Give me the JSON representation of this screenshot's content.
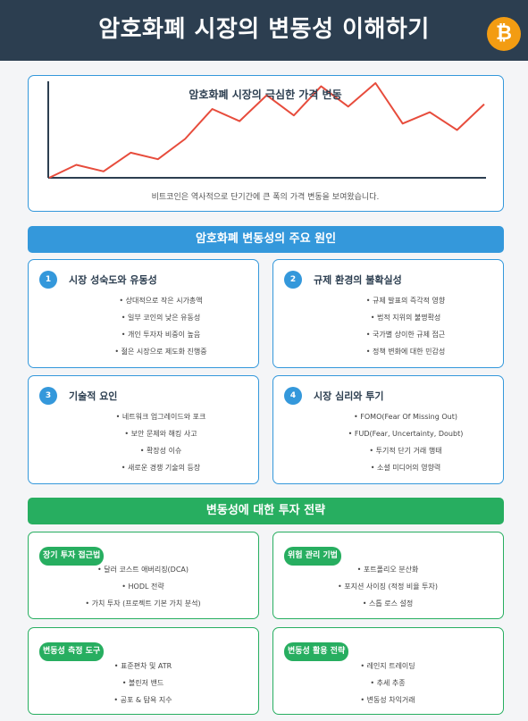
{
  "header": {
    "title": "암호화폐 시장의 변동성 이해하기",
    "icon": "bitcoin-icon",
    "icon_glyph": "₿",
    "icon_color": "#f39c12"
  },
  "chart": {
    "title": "암호화폐 시장의 극심한 가격 변동",
    "caption": "비트코인은 역사적으로 단기간에 큰 폭의 가격 변동을 보여왔습니다."
  },
  "chart_data": {
    "type": "line",
    "title": "암호화폐 시장의 극심한 가격 변동",
    "xlabel": "",
    "ylabel": "",
    "grid": false,
    "series": [
      {
        "values": [
          0,
          16,
          8,
          31,
          23,
          48,
          85,
          70,
          102,
          77,
          113,
          88,
          117,
          67,
          81,
          59,
          91
        ]
      }
    ],
    "color": "#e74c3c"
  },
  "causes": {
    "heading": "암호화폐 변동성의 주요 원인",
    "items": [
      {
        "num": "1",
        "title": "시장 성숙도와 유동성",
        "bullets": [
          "• 상대적으로 작은 시가총액",
          "• 일부 코인의 낮은 유동성",
          "• 개인 투자자 비중이 높음",
          "• 젊은 시장으로 제도화 진행중"
        ]
      },
      {
        "num": "2",
        "title": "규제 환경의 불확실성",
        "bullets": [
          "• 규제 발표의 즉각적 영향",
          "• 법적 지위의 불명확성",
          "• 국가별 상이한 규제 접근",
          "• 정책 변화에 대한 민감성"
        ]
      },
      {
        "num": "3",
        "title": "기술적 요인",
        "bullets": [
          "• 네트워크 업그레이드와 포크",
          "• 보안 문제와 해킹 사고",
          "• 확장성 이슈",
          "• 새로운 경쟁 기술의 등장"
        ]
      },
      {
        "num": "4",
        "title": "시장 심리와 투기",
        "bullets": [
          "• FOMO(Fear Of Missing Out)",
          "• FUD(Fear, Uncertainty, Doubt)",
          "• 투기적 단기 거래 행태",
          "• 소셜 미디어의 영향력"
        ]
      }
    ]
  },
  "strategies": {
    "heading": "변동성에 대한 투자 전략",
    "items": [
      {
        "title": "장기 투자 접근법",
        "bullets": [
          "• 달러 코스트 애버리징(DCA)",
          "• HODL 전략",
          "• 가치 투자 (프로젝트 기본 가치 분석)"
        ]
      },
      {
        "title": "위험 관리 기법",
        "bullets": [
          "• 포트폴리오 분산화",
          "• 포지션 사이징 (적정 비율 투자)",
          "• 스톱 로스 설정"
        ]
      },
      {
        "title": "변동성 측정 도구",
        "bullets": [
          "• 표준편차 및 ATR",
          "• 볼린저 밴드",
          "• 공포 & 탐욕 지수"
        ]
      },
      {
        "title": "변동성 활용 전략",
        "bullets": [
          "• 레인지 트레이딩",
          "• 추세 추종",
          "• 변동성 차익거래"
        ]
      }
    ]
  }
}
